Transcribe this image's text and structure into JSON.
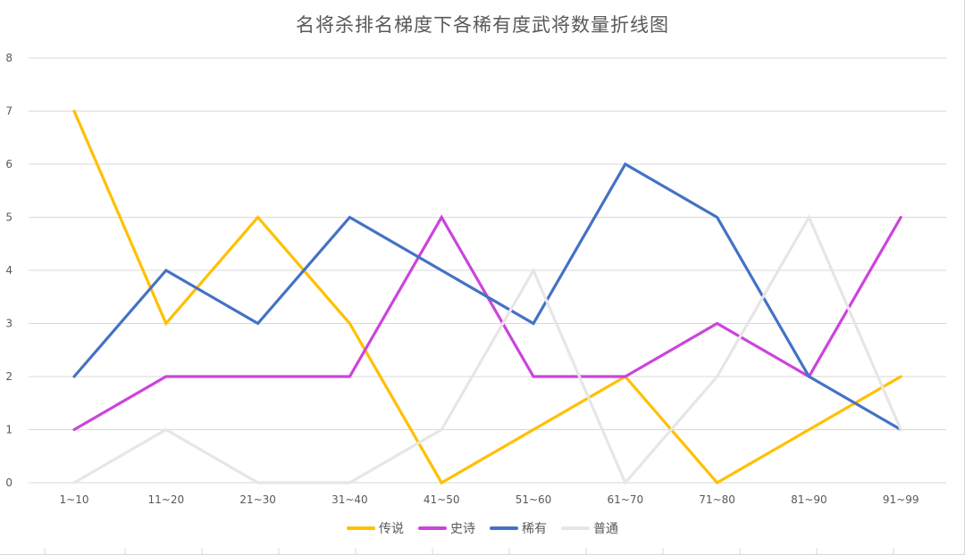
{
  "chart_data": {
    "type": "line",
    "title": "名将杀排名梯度下各稀有度武将数量折线图",
    "categories": [
      "1~10",
      "11~20",
      "21~30",
      "31~40",
      "41~50",
      "51~60",
      "61~70",
      "71~80",
      "81~90",
      "91~99"
    ],
    "ylim": [
      0,
      8
    ],
    "yticks": [
      "0",
      "1",
      "2",
      "3",
      "4",
      "5",
      "6",
      "7",
      "8"
    ],
    "grid": true,
    "legend_position": "bottom",
    "series": [
      {
        "name": "传说",
        "color": "#FFC000",
        "values": [
          7,
          3,
          5,
          3,
          0,
          1,
          2,
          0,
          1,
          2
        ]
      },
      {
        "name": "史诗",
        "color": "#CC44DD",
        "values": [
          1,
          2,
          2,
          2,
          5,
          2,
          2,
          3,
          2,
          5
        ]
      },
      {
        "name": "稀有",
        "color": "#4472C4",
        "values": [
          2,
          4,
          3,
          5,
          4,
          3,
          6,
          5,
          2,
          1
        ]
      },
      {
        "name": "普通",
        "color": "#E7E6E6",
        "values": [
          0,
          1,
          0,
          0,
          1,
          4,
          0,
          2,
          5,
          1
        ]
      }
    ]
  },
  "legend": [
    {
      "label": "传说",
      "color": "#FFC000"
    },
    {
      "label": "史诗",
      "color": "#CC44DD"
    },
    {
      "label": "稀有",
      "color": "#4472C4"
    },
    {
      "label": "普通",
      "color": "#E7E6E6"
    }
  ]
}
